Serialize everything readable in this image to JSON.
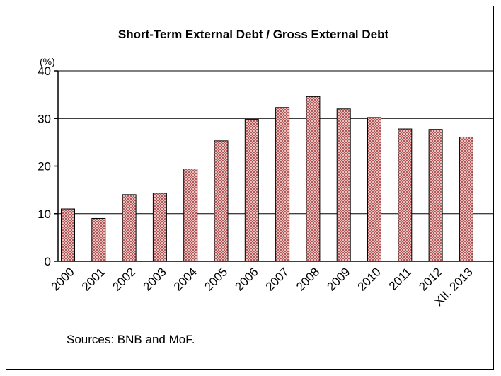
{
  "chart_data": {
    "type": "bar",
    "title": "Short-Term External Debt / Gross External Debt",
    "unit_label": "(%)",
    "categories": [
      "2000",
      "2001",
      "2002",
      "2003",
      "2004",
      "2005",
      "2006",
      "2007",
      "2008",
      "2009",
      "2010",
      "2011",
      "2012",
      "XII. 2013"
    ],
    "values": [
      11.0,
      9.0,
      14.0,
      14.3,
      19.4,
      25.3,
      29.8,
      32.3,
      34.6,
      32.0,
      30.2,
      27.8,
      27.7,
      26.1
    ],
    "ylim": [
      0,
      40
    ],
    "yticks": [
      0,
      10,
      20,
      30,
      40
    ],
    "grid": true,
    "bar_fill": "#d9a0a0",
    "bar_pattern_color": "#a05050",
    "source_note": "Sources: BNB and MoF."
  }
}
